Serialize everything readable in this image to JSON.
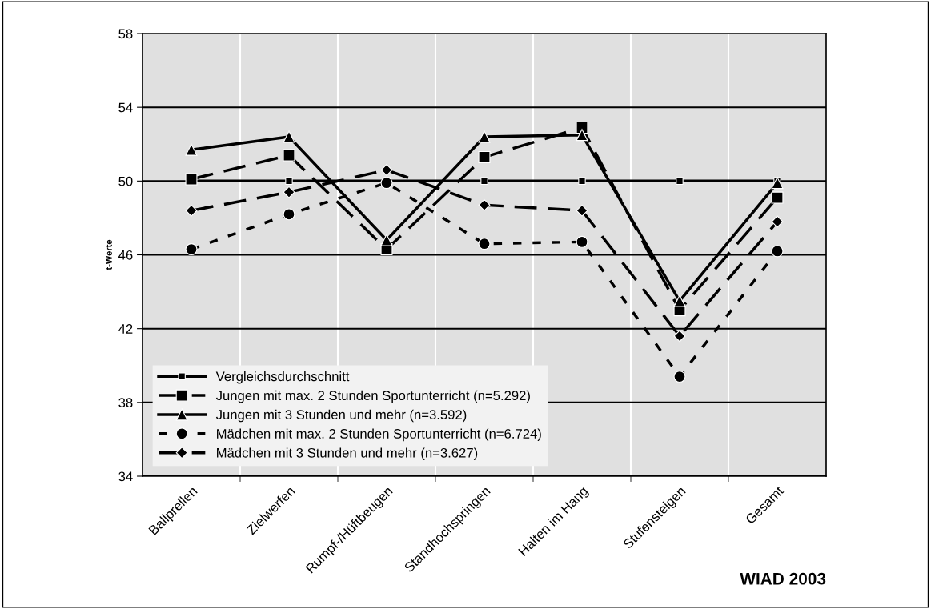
{
  "chart_data": {
    "type": "line",
    "ylabel": "t-Werte",
    "categories": [
      "Ballprellen",
      "Zielwerfen",
      "Rumpf-/Hüftbeugen",
      "Standhochspringen",
      "Halten im Hang",
      "Stufensteigen",
      "Gesamt"
    ],
    "ylim": [
      34,
      58
    ],
    "yticks": [
      34,
      38,
      42,
      46,
      50,
      54,
      58
    ],
    "grid": true,
    "legend": "bottom left",
    "series": [
      {
        "name": "Vergleichsdurchschnitt",
        "color": "#000000",
        "marker": "square",
        "line_style": "solid",
        "values": [
          50,
          50,
          50,
          50,
          50,
          50,
          50
        ]
      },
      {
        "name": "Jungen mit max. 2 Stunden Sportunterricht (n=5.292)",
        "color": "#000000",
        "marker": "square",
        "line_style": "dashed",
        "values": [
          50.1,
          51.4,
          46.3,
          51.3,
          52.9,
          43.0,
          49.1
        ]
      },
      {
        "name": "Jungen mit 3 Stunden und mehr (n=3.592)",
        "color": "#000000",
        "marker": "triangle",
        "line_style": "solid",
        "values": [
          51.7,
          52.4,
          46.8,
          52.4,
          52.5,
          43.5,
          49.9
        ]
      },
      {
        "name": "Mädchen mit max. 2 Stunden Sportunterricht (n=6.724)",
        "color": "#000000",
        "marker": "circle",
        "line_style": "dotted",
        "values": [
          46.3,
          48.2,
          49.9,
          46.6,
          46.7,
          39.4,
          46.2
        ]
      },
      {
        "name": "Mädchen mit 3 Stunden und mehr (n=3.627)",
        "color": "#000000",
        "marker": "diamond",
        "line_style": "dashed",
        "values": [
          48.4,
          49.4,
          50.6,
          48.7,
          48.4,
          41.6,
          47.8
        ]
      }
    ],
    "annotations": [
      "WIAD 2003"
    ]
  }
}
